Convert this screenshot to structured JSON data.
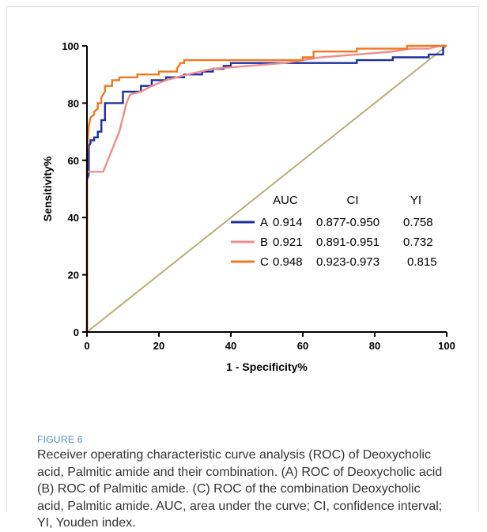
{
  "chart_data": {
    "type": "line",
    "title": "",
    "xlabel": "1 - Specificity%",
    "ylabel": "Sensitivity%",
    "xlim": [
      0,
      100
    ],
    "ylim": [
      0,
      100
    ],
    "x_ticks": [
      "0",
      "20",
      "40",
      "60",
      "80",
      "100"
    ],
    "y_ticks": [
      "0",
      "20",
      "40",
      "60",
      "80",
      "100"
    ],
    "grid": false,
    "legend": {
      "placement": "right-middle",
      "headers": [
        "AUC",
        "CI",
        "YI"
      ],
      "rows": [
        {
          "label": "A",
          "auc": "0.914",
          "ci": "0.877-0.950",
          "yi": "0.758",
          "color": "#1b2fa0"
        },
        {
          "label": "B",
          "auc": "0.921",
          "ci": "0.891-0.951",
          "yi": "0.732",
          "color": "#f08c8c"
        },
        {
          "label": "C",
          "auc": "0.948",
          "ci": "0.923-0.973",
          "yi": "0.815",
          "color": "#f07820"
        }
      ]
    },
    "reference_line": {
      "x": [
        0,
        100
      ],
      "y": [
        0,
        100
      ],
      "color": "#b8ad78"
    },
    "series": [
      {
        "name": "A",
        "color": "#1b2fa0",
        "points": [
          [
            0,
            0
          ],
          [
            0,
            53
          ],
          [
            0.5,
            55
          ],
          [
            0.5,
            65
          ],
          [
            1,
            66
          ],
          [
            1,
            67
          ],
          [
            2,
            67
          ],
          [
            2,
            68
          ],
          [
            3,
            68
          ],
          [
            3,
            70
          ],
          [
            4,
            70
          ],
          [
            4,
            74
          ],
          [
            5,
            74
          ],
          [
            5,
            80
          ],
          [
            10,
            80
          ],
          [
            10,
            84
          ],
          [
            15,
            84
          ],
          [
            15,
            86
          ],
          [
            18,
            86
          ],
          [
            18,
            88
          ],
          [
            22,
            88
          ],
          [
            22,
            89
          ],
          [
            27,
            89
          ],
          [
            27,
            90
          ],
          [
            32,
            90
          ],
          [
            32,
            91
          ],
          [
            35,
            91
          ],
          [
            35,
            92
          ],
          [
            38,
            92
          ],
          [
            38,
            93
          ],
          [
            40,
            93
          ],
          [
            40,
            94
          ],
          [
            75,
            94
          ],
          [
            75,
            95
          ],
          [
            85,
            95
          ],
          [
            85,
            96
          ],
          [
            95,
            96
          ],
          [
            95,
            97
          ],
          [
            99,
            97
          ],
          [
            99,
            100
          ],
          [
            100,
            100
          ]
        ]
      },
      {
        "name": "B",
        "color": "#f08c8c",
        "points": [
          [
            0,
            0
          ],
          [
            0,
            56
          ],
          [
            4.5,
            56
          ],
          [
            9,
            70
          ],
          [
            11,
            80
          ],
          [
            12,
            83
          ],
          [
            15,
            84
          ],
          [
            18,
            86
          ],
          [
            22,
            88
          ],
          [
            28,
            90
          ],
          [
            35,
            92
          ],
          [
            45,
            93
          ],
          [
            55,
            94
          ],
          [
            65,
            96
          ],
          [
            75,
            97
          ],
          [
            85,
            98
          ],
          [
            90,
            99
          ],
          [
            95,
            99
          ],
          [
            98,
            100
          ],
          [
            100,
            100
          ]
        ]
      },
      {
        "name": "C",
        "color": "#f07820",
        "points": [
          [
            0,
            0
          ],
          [
            0,
            62
          ],
          [
            0.5,
            72
          ],
          [
            1,
            75
          ],
          [
            2,
            76
          ],
          [
            2,
            77
          ],
          [
            3,
            78
          ],
          [
            3,
            80
          ],
          [
            4,
            80
          ],
          [
            4,
            82
          ],
          [
            5,
            84
          ],
          [
            5,
            86
          ],
          [
            7,
            86
          ],
          [
            7,
            88
          ],
          [
            9,
            88
          ],
          [
            9,
            89
          ],
          [
            14,
            89
          ],
          [
            14,
            90
          ],
          [
            20,
            90
          ],
          [
            20,
            91
          ],
          [
            25,
            91
          ],
          [
            25,
            92
          ],
          [
            26,
            94
          ],
          [
            27,
            94
          ],
          [
            27,
            95
          ],
          [
            60,
            95
          ],
          [
            60,
            96
          ],
          [
            63,
            96
          ],
          [
            63,
            98
          ],
          [
            75,
            98
          ],
          [
            75,
            99
          ],
          [
            89,
            99
          ],
          [
            89,
            100
          ],
          [
            100,
            100
          ]
        ]
      }
    ]
  },
  "figure": {
    "label": "FIGURE 6",
    "caption": "Receiver operating characteristic curve analysis (ROC) of Deoxycholic acid, Palmitic amide and their combination. (A) ROC of Deoxycholic acid (B) ROC of Palmitic amide. (C) ROC of the combination Deoxycholic acid, Palmitic amide. AUC, area under the curve; CI, confidence interval; YI, Youden index."
  }
}
